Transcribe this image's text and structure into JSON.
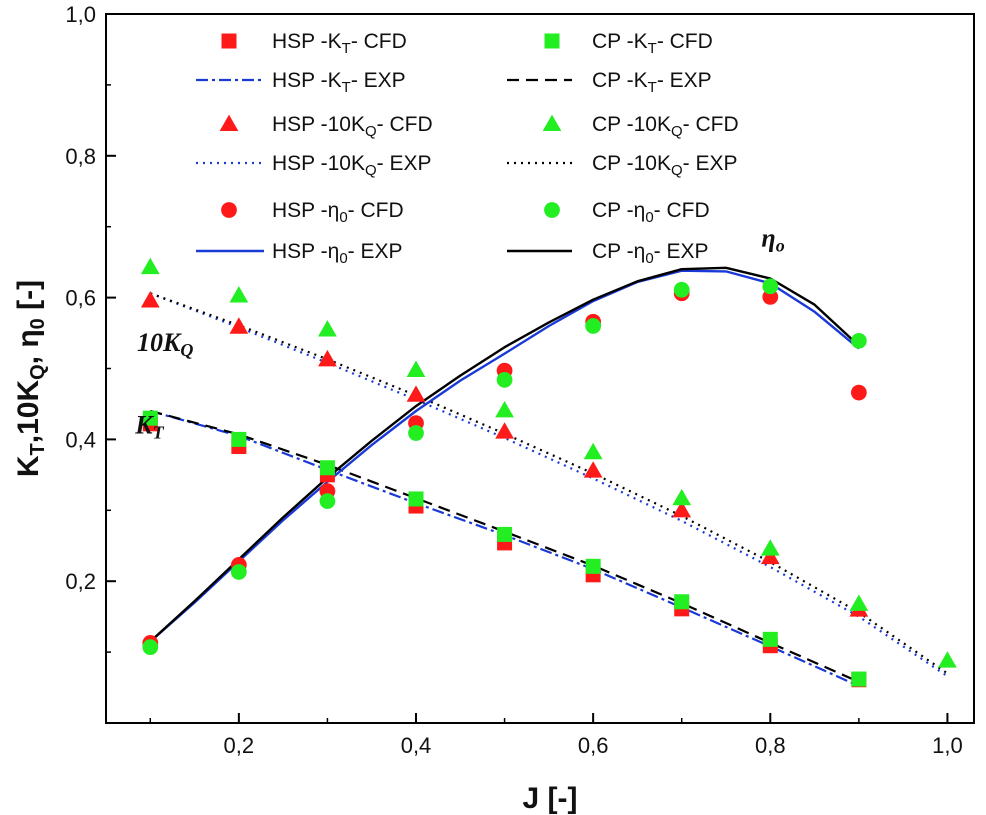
{
  "chart_data": {
    "type": "scatter",
    "xlabel": "J [-]",
    "ylabel": "K_T, 10K_Q, η_0 [-]",
    "xlim": [
      0.05,
      1.03
    ],
    "ylim": [
      0.0,
      1.0
    ],
    "xticks": [
      0.2,
      0.4,
      0.6,
      0.8,
      1.0
    ],
    "yticks": [
      0.2,
      0.4,
      0.6,
      0.8,
      1.0
    ],
    "xtick_labels": [
      "0,2",
      "0,4",
      "0,6",
      "0,8",
      "1,0"
    ],
    "ytick_labels": [
      "0,2",
      "0,4",
      "0,6",
      "0,8",
      "1,0"
    ],
    "grid": false,
    "legend_position": "top",
    "annotations": [
      {
        "id": "eta",
        "base": "η",
        "sub": "o",
        "at": [
          0.79,
          0.672
        ]
      },
      {
        "id": "kq",
        "base": "10K",
        "sub": "Q",
        "at": [
          0.085,
          0.525
        ]
      },
      {
        "id": "kt",
        "base": "K",
        "sub": "T",
        "at": [
          0.083,
          0.408
        ]
      }
    ],
    "series": [
      {
        "name": "HSP -K_T- CFD",
        "label": {
          "pre": "HSP -K",
          "sub": "T",
          "post": "- CFD"
        },
        "kind": "marker",
        "marker": "square",
        "color": "#ff1a1a",
        "x": [
          0.1,
          0.2,
          0.3,
          0.4,
          0.5,
          0.6,
          0.7,
          0.8,
          0.9
        ],
        "y": [
          0.422,
          0.39,
          0.35,
          0.306,
          0.254,
          0.209,
          0.161,
          0.109,
          0.061
        ]
      },
      {
        "name": "CP -K_T- CFD",
        "label": {
          "pre": "CP -K",
          "sub": "T",
          "post": "- CFD"
        },
        "kind": "marker",
        "marker": "square",
        "color": "#22ee22",
        "x": [
          0.1,
          0.2,
          0.3,
          0.4,
          0.5,
          0.6,
          0.7,
          0.8,
          0.9
        ],
        "y": [
          0.43,
          0.4,
          0.36,
          0.316,
          0.266,
          0.221,
          0.171,
          0.118,
          0.062
        ]
      },
      {
        "name": "HSP -K_T- EXP",
        "label": {
          "pre": "HSP -K",
          "sub": "T",
          "post": "- EXP"
        },
        "kind": "line",
        "dash": "12 4 3 4",
        "color": "#1a3ad8",
        "width": 2.2,
        "x": [
          0.1,
          0.2,
          0.3,
          0.4,
          0.5,
          0.6,
          0.7,
          0.8,
          0.9
        ],
        "y": [
          0.44,
          0.405,
          0.357,
          0.31,
          0.265,
          0.217,
          0.163,
          0.108,
          0.052
        ]
      },
      {
        "name": "CP -K_T- EXP",
        "label": {
          "pre": "CP -K",
          "sub": "T",
          "post": "- EXP"
        },
        "kind": "line",
        "dash": "12 7",
        "color": "#000000",
        "width": 2.2,
        "x": [
          0.1,
          0.2,
          0.3,
          0.4,
          0.5,
          0.6,
          0.7,
          0.8,
          0.9
        ],
        "y": [
          0.44,
          0.407,
          0.364,
          0.317,
          0.27,
          0.222,
          0.169,
          0.113,
          0.058
        ]
      },
      {
        "name": "HSP -10K_Q- CFD",
        "label": {
          "pre": "HSP -10K",
          "sub": "Q",
          "post": "- CFD"
        },
        "kind": "marker",
        "marker": "triangle",
        "color": "#ff1a1a",
        "x": [
          0.1,
          0.2,
          0.3,
          0.4,
          0.5,
          0.6,
          0.7,
          0.8,
          0.9
        ],
        "y": [
          0.596,
          0.559,
          0.513,
          0.463,
          0.411,
          0.356,
          0.3,
          0.234,
          0.16
        ]
      },
      {
        "name": "CP -10K_Q- CFD",
        "label": {
          "pre": "CP -10K",
          "sub": "Q",
          "post": "- CFD"
        },
        "kind": "marker",
        "marker": "triangle",
        "color": "#22ee22",
        "x": [
          0.1,
          0.2,
          0.3,
          0.4,
          0.5,
          0.6,
          0.7,
          0.8,
          0.9,
          1.0
        ],
        "y": [
          0.643,
          0.603,
          0.555,
          0.498,
          0.441,
          0.382,
          0.317,
          0.246,
          0.168,
          0.088
        ]
      },
      {
        "name": "HSP -10K_Q- EXP",
        "label": {
          "pre": "HSP -10K",
          "sub": "Q",
          "post": "- EXP"
        },
        "kind": "line",
        "dash": "2 5",
        "color": "#1a3ad8",
        "width": 2.2,
        "x": [
          0.1,
          0.2,
          0.3,
          0.4,
          0.5,
          0.6,
          0.7,
          0.8,
          0.9,
          1.0
        ],
        "y": [
          0.606,
          0.558,
          0.508,
          0.456,
          0.402,
          0.345,
          0.285,
          0.22,
          0.15,
          0.066
        ]
      },
      {
        "name": "CP -10K_Q- EXP",
        "label": {
          "pre": "CP -10K",
          "sub": "Q",
          "post": "- EXP"
        },
        "kind": "line",
        "dash": "2 5",
        "color": "#000000",
        "width": 2.2,
        "x": [
          0.1,
          0.2,
          0.3,
          0.4,
          0.5,
          0.6,
          0.7,
          0.8,
          0.9,
          1.0
        ],
        "y": [
          0.606,
          0.561,
          0.513,
          0.462,
          0.408,
          0.352,
          0.292,
          0.227,
          0.156,
          0.07
        ]
      },
      {
        "name": "HSP -η_0- CFD",
        "label": {
          "pre": "HSP -η",
          "sub": "0",
          "post": "- CFD"
        },
        "kind": "marker",
        "marker": "circle",
        "color": "#ff1a1a",
        "x": [
          0.1,
          0.2,
          0.3,
          0.4,
          0.5,
          0.6,
          0.7,
          0.8,
          0.9
        ],
        "y": [
          0.113,
          0.223,
          0.327,
          0.423,
          0.497,
          0.566,
          0.606,
          0.601,
          0.466
        ]
      },
      {
        "name": "CP -η_0- CFD",
        "label": {
          "pre": "CP -η",
          "sub": "0",
          "post": "- CFD"
        },
        "kind": "marker",
        "marker": "circle",
        "color": "#22ee22",
        "x": [
          0.1,
          0.2,
          0.3,
          0.4,
          0.5,
          0.6,
          0.7,
          0.8,
          0.9
        ],
        "y": [
          0.107,
          0.213,
          0.313,
          0.409,
          0.484,
          0.56,
          0.611,
          0.616,
          0.539
        ]
      },
      {
        "name": "HSP -η_0- EXP",
        "label": {
          "pre": "HSP -η",
          "sub": "0",
          "post": "- EXP"
        },
        "kind": "line",
        "dash": "none",
        "color": "#1a3ad8",
        "width": 2.4,
        "x": [
          0.1,
          0.15,
          0.2,
          0.25,
          0.3,
          0.35,
          0.4,
          0.45,
          0.5,
          0.55,
          0.6,
          0.65,
          0.7,
          0.75,
          0.8,
          0.85,
          0.9
        ],
        "y": [
          0.115,
          0.17,
          0.228,
          0.286,
          0.34,
          0.392,
          0.44,
          0.483,
          0.521,
          0.56,
          0.595,
          0.622,
          0.638,
          0.637,
          0.62,
          0.58,
          0.528
        ]
      },
      {
        "name": "CP -η_0- EXP",
        "label": {
          "pre": "CP -η",
          "sub": "0",
          "post": "- EXP"
        },
        "kind": "line",
        "dash": "none",
        "color": "#000000",
        "width": 2.4,
        "x": [
          0.1,
          0.15,
          0.2,
          0.25,
          0.3,
          0.35,
          0.4,
          0.45,
          0.5,
          0.55,
          0.6,
          0.65,
          0.7,
          0.75,
          0.8,
          0.85,
          0.9
        ],
        "y": [
          0.115,
          0.172,
          0.231,
          0.29,
          0.346,
          0.398,
          0.447,
          0.49,
          0.53,
          0.565,
          0.597,
          0.623,
          0.64,
          0.642,
          0.627,
          0.59,
          0.532
        ]
      }
    ]
  }
}
